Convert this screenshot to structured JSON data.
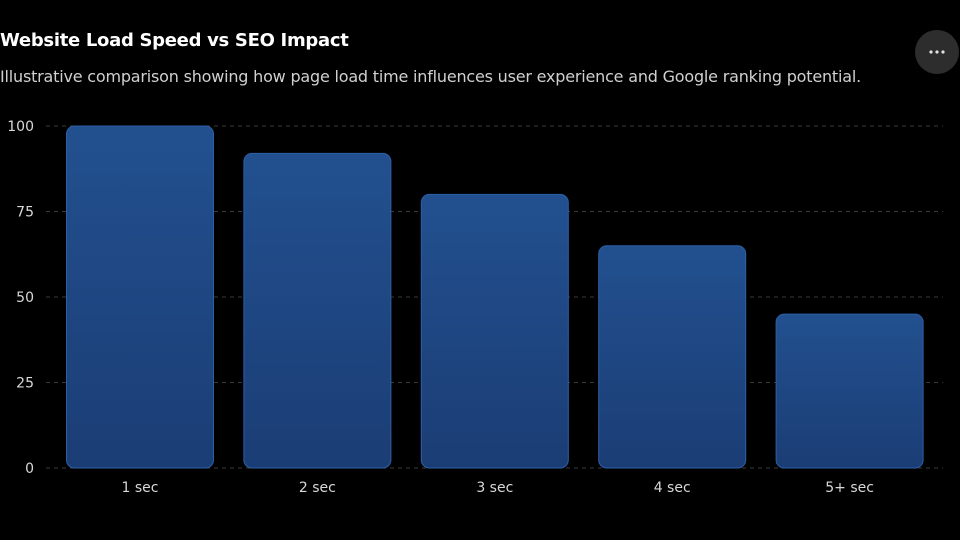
{
  "header": {
    "title": "Website Load Speed vs SEO Impact",
    "subtitle": "Illustrative comparison showing how page load time influences user experience and Google ranking potential."
  },
  "toolbar": {
    "more_icon": "more-horizontal-icon"
  },
  "colors": {
    "background": "#000000",
    "bar_top": "#22508f",
    "bar_bottom": "#1b3d75",
    "bar_stroke": "#2d5fa6",
    "grid": "#3a3a3a",
    "tick_text": "#d8d8d8"
  },
  "chart_data": {
    "type": "bar",
    "title": "Website Load Speed vs SEO Impact",
    "subtitle": "Illustrative comparison showing how page load time influences user experience and Google ranking potential.",
    "categories": [
      "1 sec",
      "2 sec",
      "3 sec",
      "4 sec",
      "5+ sec"
    ],
    "values": [
      100,
      92,
      80,
      65,
      45
    ],
    "xlabel": "",
    "ylabel": "",
    "ylim": [
      0,
      100
    ],
    "yticks": [
      0,
      25,
      50,
      75,
      100
    ],
    "grid": true,
    "legend": "none"
  }
}
